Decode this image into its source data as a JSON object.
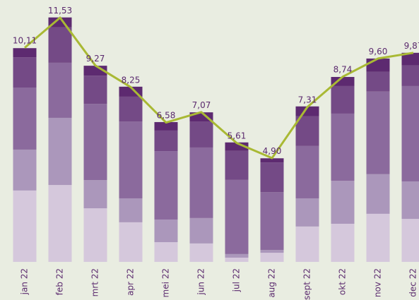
{
  "chart_data": {
    "type": "bar",
    "categories": [
      "jan 22",
      "feb 22",
      "mrt 22",
      "apr 22",
      "mei 22",
      "jun 22",
      "jul 22",
      "aug 22",
      "sept 22",
      "okt 22",
      "nov 22",
      "dec 22"
    ],
    "series": [
      {
        "color": "#d5c8dc",
        "values": [
          3.37,
          3.63,
          2.53,
          1.87,
          0.93,
          0.87,
          0.2,
          0.43,
          1.67,
          1.8,
          2.27,
          2.03
        ]
      },
      {
        "color": "#ab97bb",
        "values": [
          1.93,
          3.17,
          1.33,
          1.13,
          1.07,
          1.2,
          0.17,
          0.13,
          1.33,
          2.03,
          1.87,
          1.77
        ]
      },
      {
        "color": "#8b6a9d",
        "values": [
          2.93,
          2.6,
          3.6,
          3.63,
          3.23,
          3.33,
          3.5,
          2.73,
          2.47,
          3.17,
          3.9,
          4.5
        ]
      },
      {
        "color": "#744a86",
        "values": [
          1.43,
          1.67,
          1.33,
          1.17,
          0.97,
          1.23,
          1.37,
          1.4,
          1.4,
          1.3,
          0.93,
          0.97
        ]
      },
      {
        "color": "#5d2a70",
        "values": [
          0.43,
          0.47,
          0.47,
          0.47,
          0.4,
          0.43,
          0.4,
          0.2,
          0.47,
          0.43,
          0.63,
          0.6
        ]
      }
    ],
    "line": {
      "type": "line",
      "color": "#a9b934",
      "values": [
        10.11,
        11.53,
        9.27,
        8.25,
        6.58,
        7.07,
        5.61,
        4.9,
        7.31,
        8.74,
        9.6,
        9.87
      ],
      "value_labels": [
        "10,11",
        "11,53",
        "9,27",
        "8,25",
        "6,58",
        "7,07",
        "5,61",
        "4,90",
        "7,31",
        "8,74",
        "9,60",
        "9,87"
      ]
    }
  }
}
